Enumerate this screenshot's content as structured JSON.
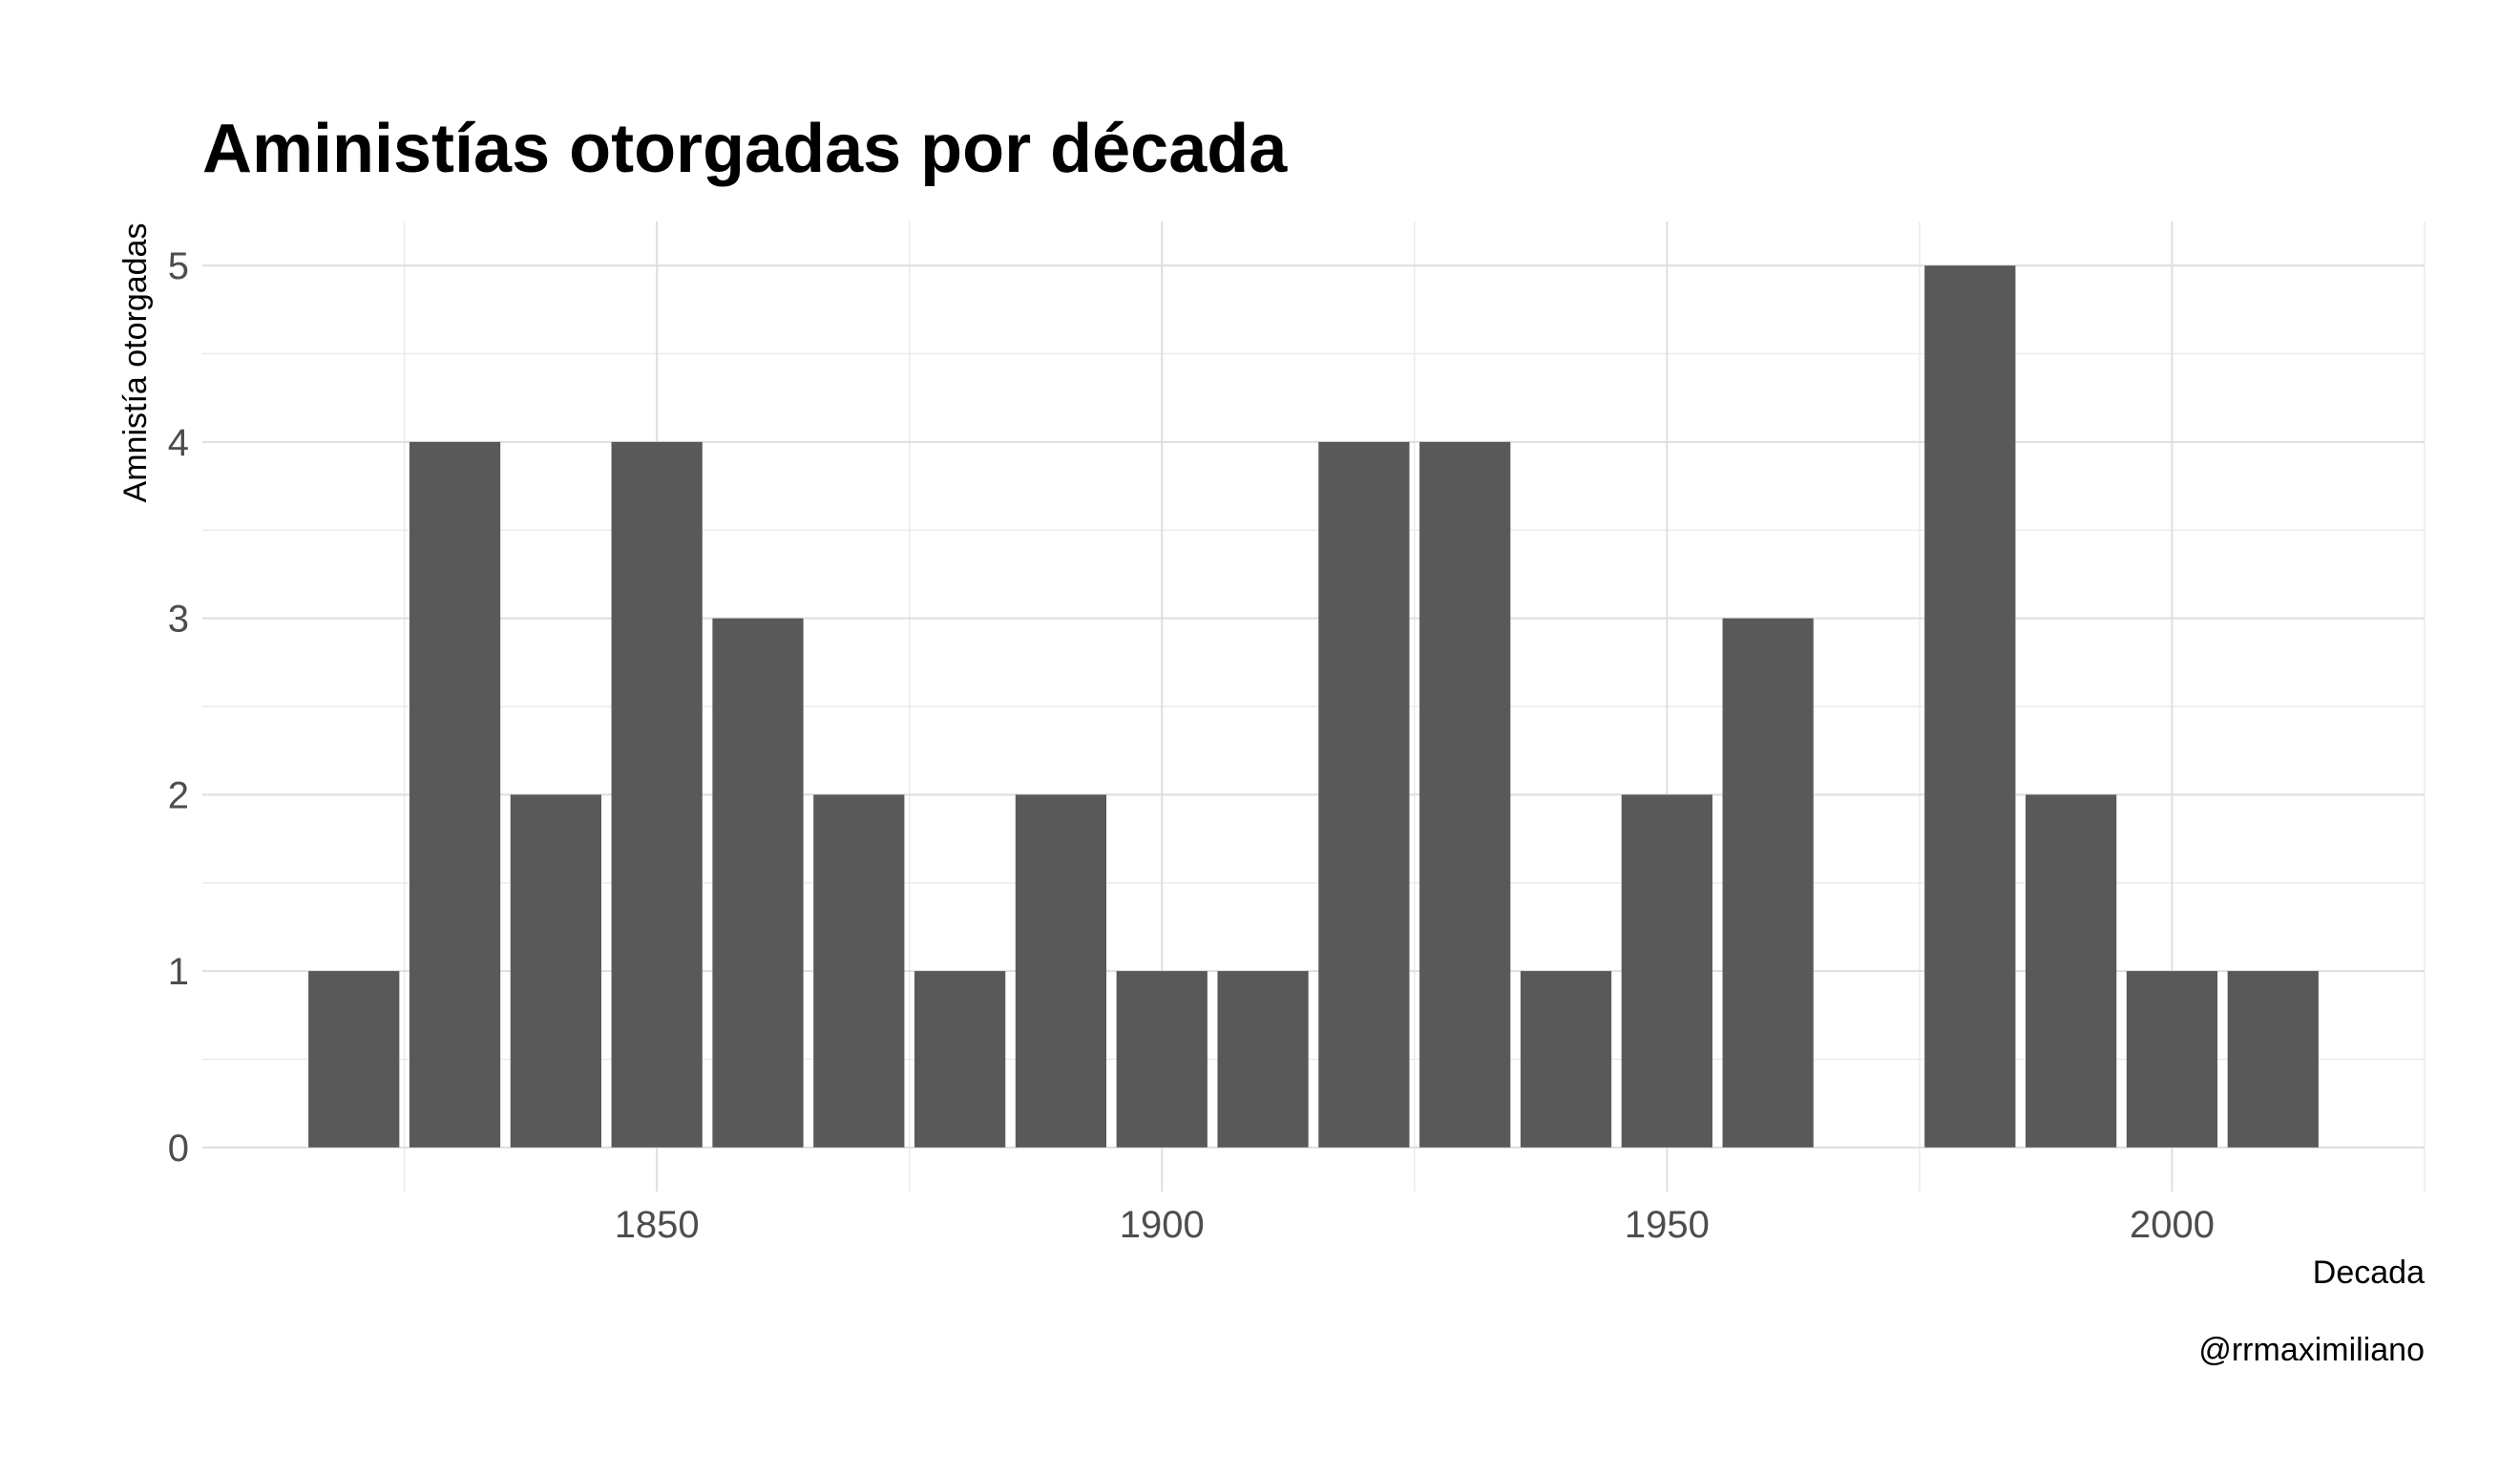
{
  "chart_data": {
    "type": "bar",
    "title": "Aministías otorgadas por década",
    "xlabel": "Decada",
    "ylabel": "Amnistía otorgadas",
    "caption": "@rrmaximiliano",
    "x": [
      1820,
      1830,
      1840,
      1850,
      1860,
      1870,
      1880,
      1890,
      1900,
      1910,
      1920,
      1930,
      1940,
      1950,
      1960,
      1980,
      1990,
      2000,
      2010
    ],
    "values": [
      1,
      4,
      2,
      4,
      3,
      2,
      1,
      2,
      1,
      1,
      4,
      4,
      1,
      2,
      3,
      5,
      2,
      1,
      1
    ],
    "xlim": [
      1805,
      2025
    ],
    "ylim": [
      -0.25,
      5.25
    ],
    "x_ticks": [
      1850,
      1900,
      1950,
      2000
    ],
    "x_tick_labels": [
      "1850",
      "1900",
      "1950",
      "2000"
    ],
    "y_ticks": [
      0,
      1,
      2,
      3,
      4,
      5
    ],
    "y_tick_labels": [
      "0",
      "1",
      "2",
      "3",
      "4",
      "5"
    ],
    "grid": true,
    "bar_color": "#595959"
  }
}
